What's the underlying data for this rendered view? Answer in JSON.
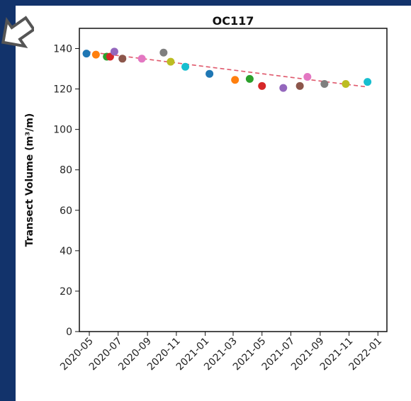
{
  "chart_data": {
    "type": "scatter",
    "title": "OC117",
    "xlabel": "",
    "ylabel": "Transect Volume (m³/m)",
    "ylim": [
      0,
      150
    ],
    "xlim": [
      "2020-04-10",
      "2022-01-20"
    ],
    "yticks": [
      0,
      20,
      40,
      60,
      80,
      100,
      120,
      140
    ],
    "xticks": [
      "2020-05",
      "2020-07",
      "2020-09",
      "2020-11",
      "2021-01",
      "2021-03",
      "2021-05",
      "2021-07",
      "2021-09",
      "2021-11",
      "2022-01"
    ],
    "grid": false,
    "points": [
      {
        "x": "2020-04-25",
        "y": 137.5,
        "color": "#1f77b4"
      },
      {
        "x": "2020-05-15",
        "y": 137,
        "color": "#ff7f0e"
      },
      {
        "x": "2020-06-07",
        "y": 136,
        "color": "#2ca02c"
      },
      {
        "x": "2020-06-14",
        "y": 136,
        "color": "#d62728"
      },
      {
        "x": "2020-06-23",
        "y": 138.5,
        "color": "#9467bd"
      },
      {
        "x": "2020-07-10",
        "y": 135,
        "color": "#8c564b"
      },
      {
        "x": "2020-08-20",
        "y": 135,
        "color": "#e377c2"
      },
      {
        "x": "2020-10-05",
        "y": 138,
        "color": "#7f7f7f"
      },
      {
        "x": "2020-10-20",
        "y": 133.5,
        "color": "#bcbd22"
      },
      {
        "x": "2020-11-20",
        "y": 131,
        "color": "#17becf"
      },
      {
        "x": "2021-01-10",
        "y": 127.5,
        "color": "#1f77b4"
      },
      {
        "x": "2021-03-05",
        "y": 124.5,
        "color": "#ff7f0e"
      },
      {
        "x": "2021-04-05",
        "y": 125,
        "color": "#2ca02c"
      },
      {
        "x": "2021-05-01",
        "y": 121.5,
        "color": "#d62728"
      },
      {
        "x": "2021-06-15",
        "y": 120.5,
        "color": "#9467bd"
      },
      {
        "x": "2021-07-20",
        "y": 121.5,
        "color": "#8c564b"
      },
      {
        "x": "2021-08-05",
        "y": 126,
        "color": "#e377c2"
      },
      {
        "x": "2021-09-10",
        "y": 122.5,
        "color": "#7f7f7f"
      },
      {
        "x": "2021-10-25",
        "y": 122.5,
        "color": "#bcbd22"
      },
      {
        "x": "2021-12-10",
        "y": 123.5,
        "color": "#17becf"
      }
    ],
    "trendline": {
      "from": {
        "x": "2020-04-25",
        "y": 138.5
      },
      "to": {
        "x": "2021-12-10",
        "y": 121
      },
      "color": "#e05a6d",
      "style": "dashed"
    }
  }
}
